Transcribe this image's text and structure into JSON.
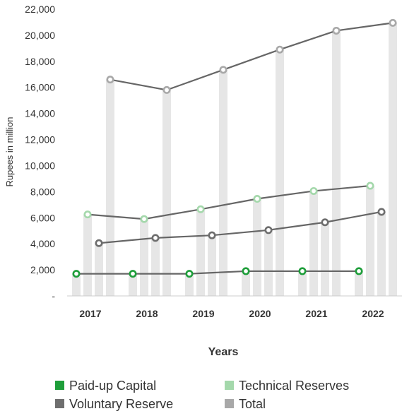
{
  "chart_data": {
    "type": "line",
    "title": "",
    "xlabel": "Years",
    "ylabel": "Rupees in million",
    "categories": [
      "2017",
      "2018",
      "2019",
      "2020",
      "2021",
      "2022"
    ],
    "ylim": [
      0,
      22000
    ],
    "y_ticks": [
      {
        "value": 0,
        "label": "-"
      },
      {
        "value": 2000,
        "label": "2,000"
      },
      {
        "value": 4000,
        "label": "4,000"
      },
      {
        "value": 6000,
        "label": "6,000"
      },
      {
        "value": 8000,
        "label": "8,000"
      },
      {
        "value": 10000,
        "label": "10,000"
      },
      {
        "value": 12000,
        "label": "12,000"
      },
      {
        "value": 14000,
        "label": "14,000"
      },
      {
        "value": 16000,
        "label": "16,000"
      },
      {
        "value": 18000,
        "label": "18,000"
      },
      {
        "value": 20000,
        "label": "20,000"
      },
      {
        "value": 22000,
        "label": "22,000"
      }
    ],
    "series": [
      {
        "name": "Paid-up Capital",
        "color": "#1e9e3a",
        "marker_fill": "#ffffff",
        "values": [
          1700,
          1700,
          1700,
          1900,
          1900,
          1900
        ]
      },
      {
        "name": "Technical Reserves",
        "color": "#a4d8ab",
        "marker_fill": "#ffffff",
        "values": [
          6250,
          5900,
          6650,
          7450,
          8050,
          8450
        ]
      },
      {
        "name": "Voluntary Reserve",
        "color": "#6e6e6e",
        "marker_fill": "#ffffff",
        "values": [
          4050,
          4450,
          4650,
          5050,
          5650,
          6450
        ]
      },
      {
        "name": "Total",
        "color": "#a8a8a8",
        "marker_fill": "#ffffff",
        "values": [
          16600,
          15800,
          17350,
          18900,
          20350,
          20950
        ]
      }
    ],
    "line_color": "#666666",
    "bar_color": "#e6e6e6",
    "grid": false,
    "legend_position": "bottom"
  }
}
